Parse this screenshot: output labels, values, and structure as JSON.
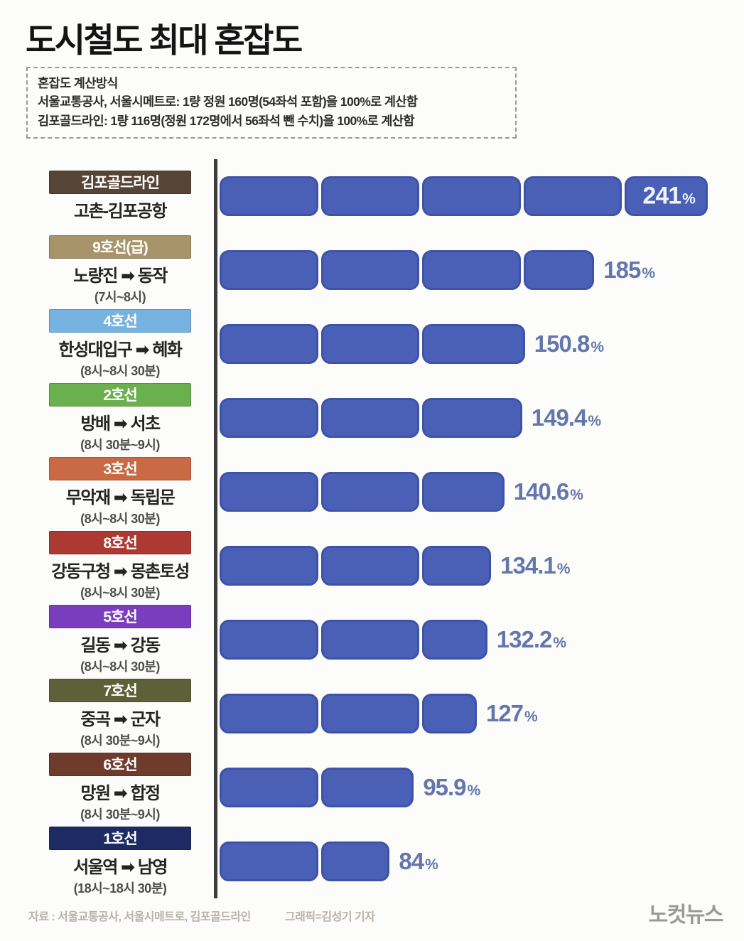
{
  "title": "도시철도 최대 혼잡도",
  "info_box": {
    "lines": [
      "혼잡도 계산방식",
      "서울교통공사, 서울시메트로: 1량 정원 160명(54좌석 포함)을 100%로 계산함",
      "김포골드라인: 1량 116명(정원 172명에서 56좌석 뺀 수치)을 100%로 계산함"
    ]
  },
  "chart_data": {
    "type": "bar",
    "orientation": "horizontal",
    "title": "도시철도 최대 혼잡도",
    "unit": "%",
    "xlim": [
      0,
      250
    ],
    "segment_size_pct": 50,
    "bar_color": "#4a60b7",
    "bar_border_color": "#3e52a6",
    "value_label_color": "#6377ac",
    "axis_color": "#3c3c3c",
    "rows": [
      {
        "line": "김포골드라인",
        "line_color": "#564437",
        "route": "고촌-김포공항",
        "time": "",
        "value": 241,
        "value_label": "241",
        "value_inside": true
      },
      {
        "line": "9호선(급)",
        "line_color": "#a8946b",
        "route": "노량진 ➡ 동작",
        "time": "(7시~8시)",
        "value": 185,
        "value_label": "185",
        "value_inside": false
      },
      {
        "line": "4호선",
        "line_color": "#77b3e0",
        "route": "한성대입구 ➡ 혜화",
        "time": "(8시~8시 30분)",
        "value": 150.8,
        "value_label": "150.8",
        "value_inside": false
      },
      {
        "line": "2호선",
        "line_color": "#6bb04f",
        "route": "방배 ➡ 서초",
        "time": "(8시 30분~9시)",
        "value": 149.4,
        "value_label": "149.4",
        "value_inside": false
      },
      {
        "line": "3호선",
        "line_color": "#c96a45",
        "route": "무악재 ➡ 독립문",
        "time": "(8시~8시 30분)",
        "value": 140.6,
        "value_label": "140.6",
        "value_inside": false
      },
      {
        "line": "8호선",
        "line_color": "#ac3a33",
        "route": "강동구청 ➡ 몽촌토성",
        "time": "(8시~8시 30분)",
        "value": 134.1,
        "value_label": "134.1",
        "value_inside": false
      },
      {
        "line": "5호선",
        "line_color": "#7a3dbd",
        "route": "길동 ➡ 강동",
        "time": "(8시~8시 30분)",
        "value": 132.2,
        "value_label": "132.2",
        "value_inside": false
      },
      {
        "line": "7호선",
        "line_color": "#5d6137",
        "route": "중곡 ➡ 군자",
        "time": "(8시 30분~9시)",
        "value": 127,
        "value_label": "127",
        "value_inside": false
      },
      {
        "line": "6호선",
        "line_color": "#6f3b2d",
        "route": "망원 ➡ 합정",
        "time": "(8시 30분~9시)",
        "value": 95.9,
        "value_label": "95.9",
        "value_inside": false
      },
      {
        "line": "1호선",
        "line_color": "#1e2a64",
        "route": "서울역 ➡ 남영",
        "time": "(18시~18시 30분)",
        "value": 84,
        "value_label": "84",
        "value_inside": false
      }
    ]
  },
  "footer": {
    "source": "자료 : 서울교통공사, 서울시메트로, 김포골드라인",
    "credit": "그래픽=김성기 기자",
    "logo": "노컷뉴스"
  }
}
